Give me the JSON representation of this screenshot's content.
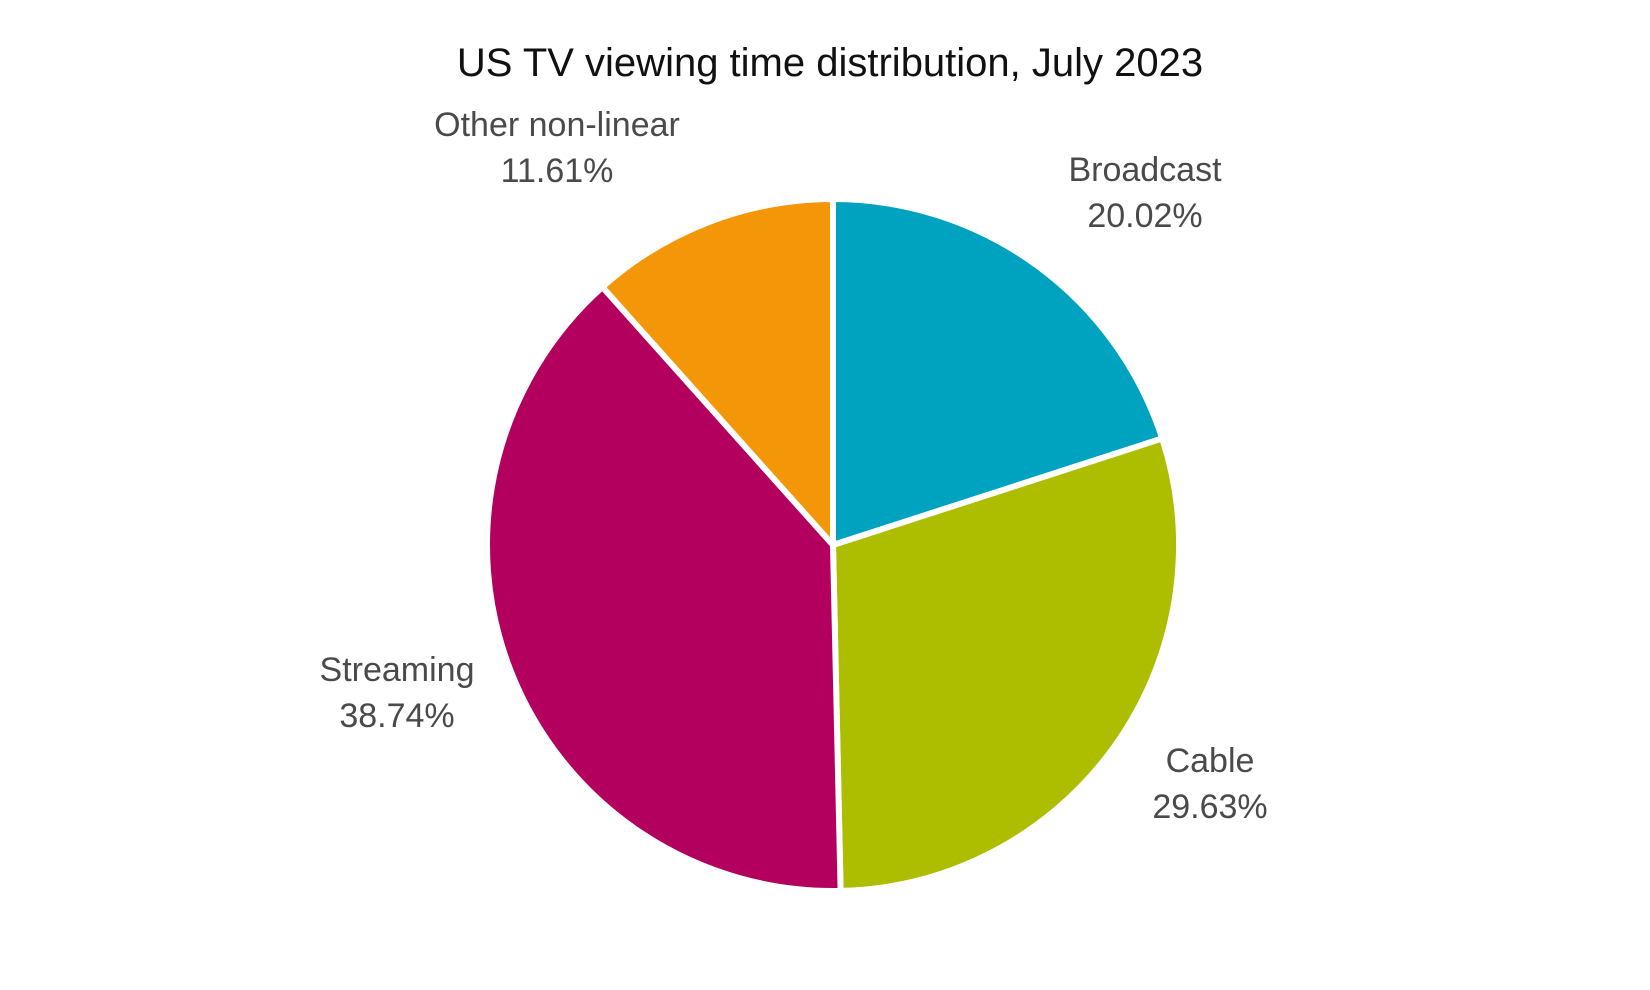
{
  "chart_data": {
    "type": "pie",
    "title": "US TV viewing time distribution, July 2023",
    "start_angle_deg": 0,
    "direction": "clockwise",
    "slices": [
      {
        "key": "broadcast",
        "label": "Broadcast",
        "value": 20.02,
        "value_label": "20.02%",
        "color": "#00A3BF"
      },
      {
        "key": "cable",
        "label": "Cable",
        "value": 29.63,
        "value_label": "29.63%",
        "color": "#ADBD00"
      },
      {
        "key": "streaming",
        "label": "Streaming",
        "value": 38.74,
        "value_label": "38.74%",
        "color": "#B3005E"
      },
      {
        "key": "other-non-linear",
        "label": "Other non-linear",
        "value": 11.61,
        "value_label": "11.61%",
        "color": "#F39709"
      }
    ]
  }
}
